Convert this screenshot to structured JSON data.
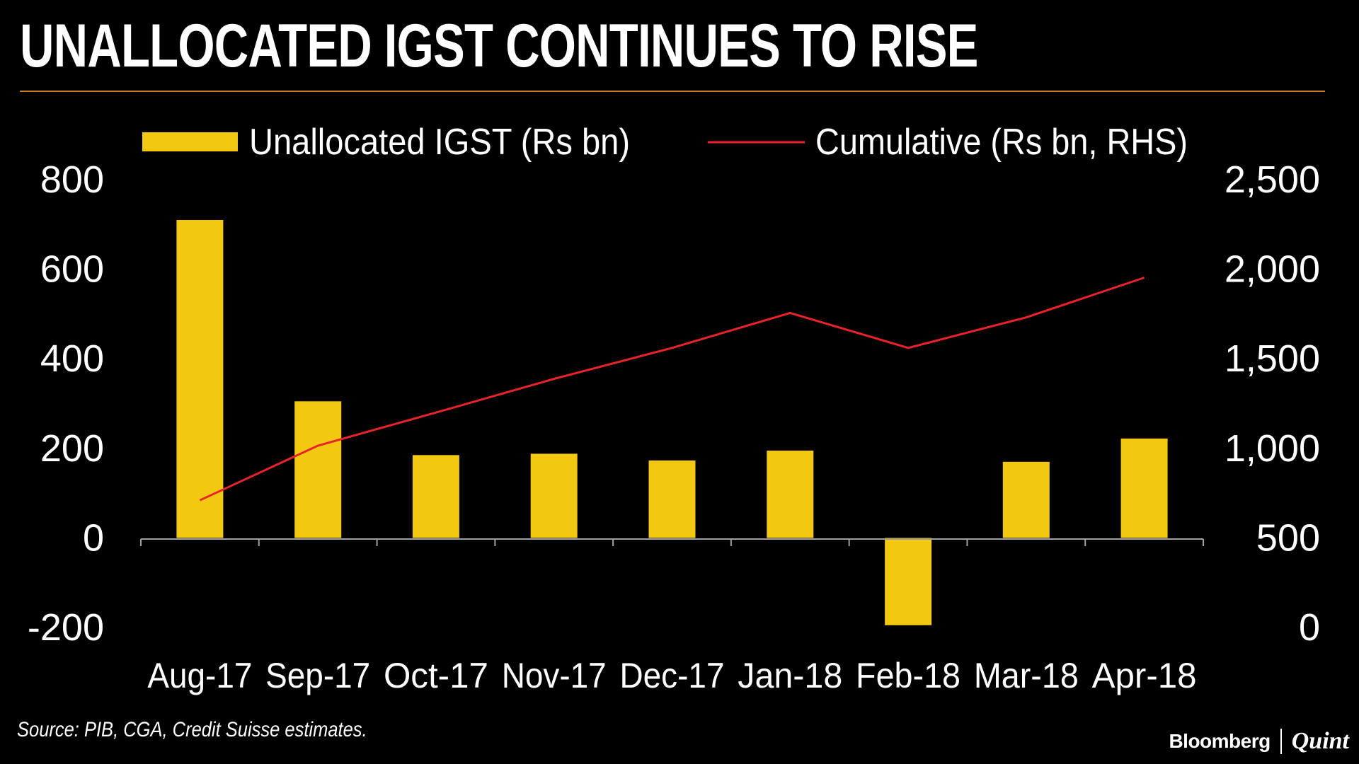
{
  "title": "UNALLOCATED IGST CONTINUES TO RISE",
  "source": "Source: PIB, CGA, Credit Suisse estimates.",
  "brand": {
    "primary": "Bloomberg",
    "secondary": "Quint"
  },
  "colors": {
    "background": "#000000",
    "bar": "#f2c811",
    "line": "#e8232a",
    "rule": "#c8781e",
    "axis": "#a0a0a0",
    "text": "#ffffff"
  },
  "chart_data": {
    "type": "bar",
    "title": "UNALLOCATED IGST CONTINUES TO RISE",
    "categories": [
      "Aug-17",
      "Sep-17",
      "Oct-17",
      "Nov-17",
      "Dec-17",
      "Jan-18",
      "Feb-18",
      "Mar-18",
      "Apr-18"
    ],
    "series": [
      {
        "name": "Unallocated IGST (Rs bn)",
        "kind": "bar",
        "axis": "left",
        "values": [
          710,
          305,
          185,
          188,
          173,
          195,
          -195,
          170,
          222
        ]
      },
      {
        "name": "Cumulative (Rs bn, RHS)",
        "kind": "line",
        "axis": "right",
        "values": [
          710,
          1015,
          1200,
          1388,
          1561,
          1756,
          1561,
          1731,
          1953
        ]
      }
    ],
    "y_left": {
      "min": -200,
      "max": 800,
      "ticks": [
        800,
        600,
        400,
        200,
        0,
        -200
      ],
      "tick_labels": [
        "800",
        "600",
        "400",
        "200",
        "0",
        "-200"
      ]
    },
    "y_right": {
      "min": 0,
      "max": 2500,
      "ticks": [
        2500,
        2000,
        1500,
        1000,
        500,
        0
      ],
      "tick_labels": [
        "2,500",
        "2,000",
        "1,500",
        "1,000",
        "500",
        "0"
      ]
    },
    "legend": [
      {
        "label": "Unallocated IGST (Rs bn)",
        "kind": "bar"
      },
      {
        "label": "Cumulative (Rs bn, RHS)",
        "kind": "line"
      }
    ],
    "legend_position": "top",
    "grid": false
  }
}
